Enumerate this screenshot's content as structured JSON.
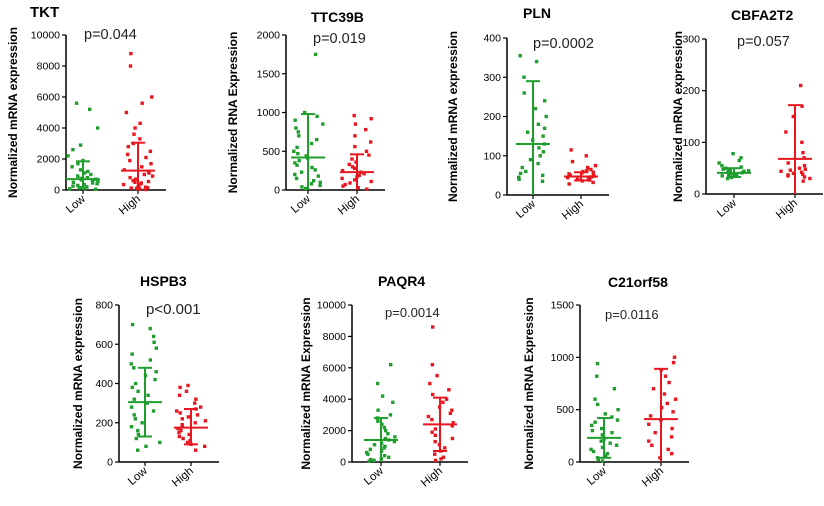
{
  "colors": {
    "low": "#1f9e2e",
    "high": "#e8161f",
    "axis": "#000000"
  },
  "chart_data": [
    {
      "type": "scatter",
      "title": "TKT",
      "pvalue": "p=0.044",
      "ylabel": "Normalized mRNA expression",
      "categories": [
        "Low",
        "High"
      ],
      "ylim": [
        0,
        10000
      ],
      "yticks": [
        "0",
        "2000",
        "4000",
        "6000",
        "8000",
        "10000"
      ],
      "series": [
        {
          "values": [
            50,
            80,
            100,
            120,
            150,
            200,
            250,
            300,
            350,
            400,
            450,
            500,
            550,
            600,
            650,
            700,
            750,
            800,
            900,
            1000,
            1100,
            1200,
            1300,
            1500,
            1700,
            1900,
            2200,
            2600,
            2900,
            4000,
            5200,
            5600
          ],
          "mean": 700,
          "sd_upper": 1850,
          "sd_lower": 0
        },
        {
          "values": [
            30,
            60,
            90,
            120,
            150,
            180,
            210,
            250,
            300,
            350,
            400,
            450,
            500,
            550,
            600,
            700,
            800,
            900,
            1000,
            1100,
            1200,
            1300,
            1500,
            1700,
            1900,
            2100,
            2300,
            2500,
            2800,
            3000,
            3300,
            3600,
            4000,
            4300,
            5000,
            5600,
            6000,
            8000,
            8800
          ],
          "mean": 1250,
          "sd_upper": 3050,
          "sd_lower": 0
        }
      ]
    },
    {
      "type": "scatter",
      "title": "TTC39B",
      "pvalue": "p=0.019",
      "ylabel": "Normalized RNA Expression",
      "categories": [
        "Low",
        "High"
      ],
      "ylim": [
        0,
        2000
      ],
      "yticks": [
        "0",
        "500",
        "1000",
        "1500",
        "2000"
      ],
      "series": [
        {
          "values": [
            20,
            40,
            60,
            80,
            100,
            120,
            150,
            180,
            200,
            230,
            260,
            290,
            320,
            350,
            380,
            410,
            440,
            470,
            500,
            550,
            600,
            650,
            700,
            750,
            800,
            850,
            900,
            950,
            1000,
            1750
          ],
          "mean": 420,
          "sd_upper": 980,
          "sd_lower": 0
        },
        {
          "values": [
            10,
            30,
            50,
            70,
            90,
            110,
            130,
            150,
            170,
            190,
            210,
            230,
            250,
            280,
            300,
            330,
            360,
            400,
            450,
            500,
            560,
            620,
            700,
            780,
            850,
            920,
            960
          ],
          "mean": 230,
          "sd_upper": 460,
          "sd_lower": 0
        }
      ]
    },
    {
      "type": "scatter",
      "title": "PLN",
      "pvalue": "p=0.0002",
      "ylabel": "Normalized mRNA expression",
      "categories": [
        "Low",
        "High"
      ],
      "ylim": [
        0,
        400
      ],
      "yticks": [
        "0",
        "100",
        "200",
        "300",
        "400"
      ],
      "series": [
        {
          "values": [
            35,
            40,
            45,
            50,
            55,
            60,
            70,
            80,
            90,
            100,
            110,
            120,
            130,
            140,
            150,
            160,
            170,
            180,
            200,
            220,
            240,
            260,
            300,
            340,
            355
          ],
          "mean": 130,
          "sd_upper": 290,
          "sd_lower": 0
        },
        {
          "values": [
            28,
            32,
            36,
            38,
            40,
            42,
            44,
            46,
            48,
            50,
            52,
            54,
            56,
            58,
            60,
            62,
            65,
            70,
            75,
            85,
            100,
            115
          ],
          "mean": 47,
          "sd_upper": 58,
          "sd_lower": 37
        }
      ]
    },
    {
      "type": "scatter",
      "title": "CBFA2T2",
      "pvalue": "p=0.057",
      "ylabel": "Normalized mRNA expression",
      "categories": [
        "Low",
        "High"
      ],
      "ylim": [
        0,
        300
      ],
      "yticks": [
        "0",
        "100",
        "200",
        "300"
      ],
      "series": [
        {
          "values": [
            30,
            32,
            34,
            35,
            36,
            37,
            38,
            39,
            40,
            41,
            42,
            43,
            44,
            45,
            46,
            47,
            48,
            50,
            52,
            55,
            60,
            65,
            70,
            78
          ],
          "mean": 41,
          "sd_upper": 50,
          "sd_lower": 33
        },
        {
          "values": [
            25,
            30,
            33,
            35,
            37,
            38,
            40,
            42,
            44,
            46,
            48,
            50,
            55,
            60,
            70,
            80,
            100,
            120,
            150,
            170,
            210
          ],
          "mean": 68,
          "sd_upper": 172,
          "sd_lower": 0
        }
      ]
    },
    {
      "type": "scatter",
      "title": "HSPB3",
      "pvalue": "p<0.001",
      "ylabel": "Normalized mRNA expression",
      "categories": [
        "Low",
        "High"
      ],
      "ylim": [
        0,
        800
      ],
      "yticks": [
        "0",
        "200",
        "400",
        "600",
        "800"
      ],
      "series": [
        {
          "values": [
            60,
            80,
            100,
            120,
            140,
            160,
            180,
            200,
            220,
            240,
            260,
            280,
            300,
            320,
            340,
            360,
            380,
            400,
            420,
            440,
            460,
            480,
            500,
            520,
            550,
            580,
            610,
            640,
            680,
            700
          ],
          "mean": 305,
          "sd_upper": 480,
          "sd_lower": 130
        },
        {
          "values": [
            60,
            80,
            90,
            100,
            110,
            120,
            130,
            140,
            150,
            160,
            170,
            180,
            190,
            200,
            210,
            220,
            230,
            240,
            250,
            260,
            270,
            280,
            300,
            320,
            340,
            360,
            380,
            390
          ],
          "mean": 175,
          "sd_upper": 270,
          "sd_lower": 90
        }
      ]
    },
    {
      "type": "scatter",
      "title": "PAQR4",
      "pvalue": "p=0.0014",
      "ylabel": "Normalized mRNA Expression",
      "categories": [
        "Low",
        "High"
      ],
      "ylim": [
        0,
        10000
      ],
      "yticks": [
        "0",
        "2000",
        "4000",
        "6000",
        "8000",
        "10000"
      ],
      "series": [
        {
          "values": [
            50,
            100,
            150,
            200,
            300,
            400,
            500,
            600,
            700,
            800,
            900,
            1000,
            1100,
            1200,
            1300,
            1400,
            1500,
            1600,
            1800,
            2000,
            2200,
            2400,
            2600,
            2800,
            3000,
            3300,
            3800,
            4200,
            5000,
            6200
          ],
          "mean": 1400,
          "sd_upper": 2800,
          "sd_lower": 0
        },
        {
          "values": [
            100,
            200,
            300,
            500,
            700,
            900,
            1100,
            1300,
            1500,
            1700,
            1900,
            2100,
            2300,
            2500,
            2700,
            2900,
            3100,
            3300,
            3500,
            3800,
            4000,
            4300,
            4600,
            5000,
            5500,
            6200,
            8600
          ],
          "mean": 2400,
          "sd_upper": 4100,
          "sd_lower": 700
        }
      ]
    },
    {
      "type": "scatter",
      "title": "C21orf58",
      "pvalue": "p=0.0116",
      "ylabel": "Normalized mRNA Expression",
      "categories": [
        "Low",
        "High"
      ],
      "ylim": [
        0,
        1500
      ],
      "yticks": [
        "0",
        "500",
        "1000",
        "1500"
      ],
      "series": [
        {
          "values": [
            10,
            20,
            40,
            60,
            80,
            100,
            120,
            140,
            160,
            180,
            200,
            220,
            240,
            260,
            280,
            300,
            320,
            350,
            380,
            400,
            430,
            460,
            500,
            550,
            600,
            700,
            820,
            940
          ],
          "mean": 230,
          "sd_upper": 420,
          "sd_lower": 40
        },
        {
          "values": [
            40,
            80,
            120,
            160,
            200,
            240,
            280,
            320,
            360,
            400,
            440,
            480,
            520,
            560,
            600,
            650,
            700,
            760,
            820,
            880,
            950,
            1000
          ],
          "mean": 410,
          "sd_upper": 890,
          "sd_lower": 0
        }
      ]
    }
  ]
}
